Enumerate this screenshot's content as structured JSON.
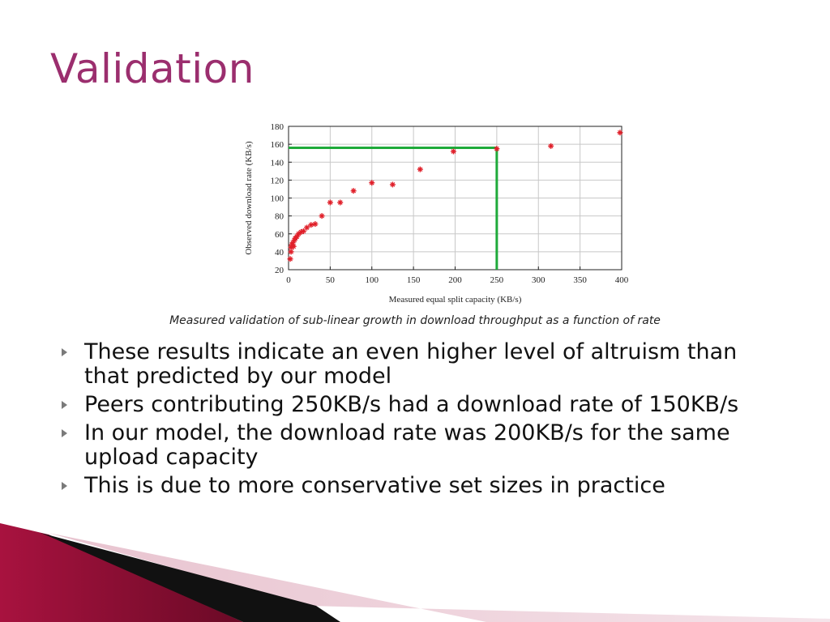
{
  "slide": {
    "title": "Validation",
    "caption": "Measured validation of sub-linear growth in download throughput as a function of rate",
    "bullets": [
      "These results indicate an even higher level of altruism than that predicted by our model",
      "Peers contributing 250KB/s had a download rate of 150KB/s",
      "In our model, the download rate was 200KB/s for the same upload capacity",
      "This is due to more conservative set sizes in practice"
    ],
    "colors": {
      "title": "#9b2e6e",
      "marker": "#e0202a",
      "highlight_line": "#1faa3a",
      "bullet_marker": "#7a7a7a"
    }
  },
  "chart_data": {
    "type": "scatter",
    "xlabel": "Measured equal split capacity (KB/s)",
    "ylabel": "Observed download rate (KB/s)",
    "xlim": [
      0,
      400
    ],
    "ylim": [
      20,
      180
    ],
    "xticks": [
      0,
      50,
      100,
      150,
      200,
      250,
      300,
      350,
      400
    ],
    "yticks": [
      20,
      40,
      60,
      80,
      100,
      120,
      140,
      160,
      180
    ],
    "grid": true,
    "marker": "asterisk",
    "series": [
      {
        "points": [
          [
            2,
            32
          ],
          [
            3,
            40
          ],
          [
            3,
            45
          ],
          [
            4,
            48
          ],
          [
            5,
            50
          ],
          [
            6,
            46
          ],
          [
            7,
            53
          ],
          [
            8,
            55
          ],
          [
            10,
            57
          ],
          [
            12,
            60
          ],
          [
            15,
            62
          ],
          [
            18,
            63
          ],
          [
            22,
            67
          ],
          [
            27,
            70
          ],
          [
            32,
            71
          ],
          [
            40,
            80
          ],
          [
            50,
            95
          ],
          [
            62,
            95
          ],
          [
            78,
            108
          ],
          [
            100,
            117
          ],
          [
            125,
            115
          ],
          [
            158,
            132
          ],
          [
            198,
            152
          ],
          [
            250,
            155
          ],
          [
            315,
            158
          ],
          [
            398,
            173
          ]
        ]
      }
    ],
    "annotation_lines": [
      {
        "from": [
          0,
          156
        ],
        "to": [
          250,
          156
        ]
      },
      {
        "from": [
          250,
          156
        ],
        "to": [
          250,
          20
        ]
      }
    ]
  }
}
